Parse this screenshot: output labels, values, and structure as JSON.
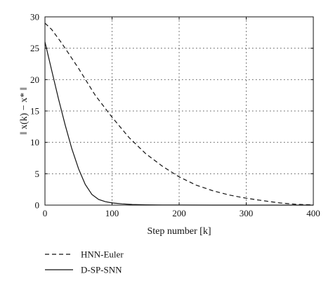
{
  "chart_data": {
    "type": "line",
    "xlabel": "Step number [k]",
    "ylabel": "‖ x(k) − x* ‖",
    "xlim": [
      0,
      400
    ],
    "ylim": [
      0,
      30
    ],
    "xticks": [
      0,
      100,
      200,
      300,
      400
    ],
    "yticks": [
      0,
      5,
      10,
      15,
      20,
      25,
      30
    ],
    "grid": true,
    "legend_position": "below",
    "series": [
      {
        "name": "HNN-Euler",
        "style": "dashed",
        "color": "#111111",
        "x": [
          0,
          10,
          25,
          50,
          75,
          100,
          125,
          150,
          175,
          200,
          225,
          250,
          275,
          300,
          325,
          350,
          375,
          400
        ],
        "y": [
          29.0,
          28.0,
          25.8,
          21.8,
          17.5,
          14.0,
          10.8,
          8.2,
          6.2,
          4.5,
          3.2,
          2.3,
          1.6,
          1.1,
          0.7,
          0.35,
          0.12,
          0.05
        ]
      },
      {
        "name": "D-SP-SNN",
        "style": "solid",
        "color": "#111111",
        "x": [
          0,
          10,
          20,
          30,
          40,
          50,
          60,
          70,
          80,
          90,
          100,
          115,
          130,
          150,
          175,
          200,
          250,
          300,
          350,
          400
        ],
        "y": [
          26.0,
          21.5,
          17.0,
          12.8,
          9.0,
          5.8,
          3.3,
          1.7,
          0.9,
          0.55,
          0.35,
          0.2,
          0.1,
          0.05,
          0.02,
          0.01,
          0.0,
          0.0,
          0.0,
          0.0
        ]
      }
    ]
  }
}
